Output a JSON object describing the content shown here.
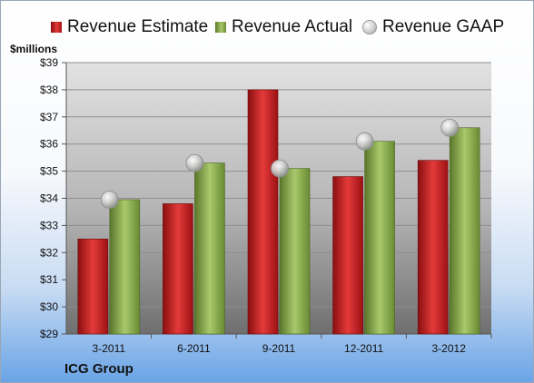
{
  "legend": {
    "estimate": "Revenue Estimate",
    "actual": "Revenue Actual",
    "gaap": "Revenue GAAP"
  },
  "unit_label": "$millions",
  "company": "ICG Group",
  "colors": {
    "estimate": "#c0181c",
    "actual": "#8eae4f",
    "gaap": "#b8b8b8"
  },
  "chart_data": {
    "type": "bar",
    "title": "",
    "xlabel": "",
    "ylabel": "$millions",
    "ylim": [
      29,
      39
    ],
    "yticks": [
      "$29",
      "$30",
      "$31",
      "$32",
      "$33",
      "$34",
      "$35",
      "$36",
      "$37",
      "$38",
      "$39"
    ],
    "categories": [
      "3-2011",
      "6-2011",
      "9-2011",
      "12-2011",
      "3-2012"
    ],
    "series": [
      {
        "name": "Revenue Estimate",
        "type": "bar",
        "values": [
          32.5,
          33.8,
          38.0,
          34.8,
          35.4
        ]
      },
      {
        "name": "Revenue Actual",
        "type": "bar",
        "values": [
          33.95,
          35.3,
          35.1,
          36.1,
          36.6
        ]
      },
      {
        "name": "Revenue GAAP",
        "type": "marker",
        "values": [
          33.95,
          35.3,
          35.1,
          36.1,
          36.6
        ]
      }
    ],
    "legend_position": "top",
    "grid": true
  }
}
